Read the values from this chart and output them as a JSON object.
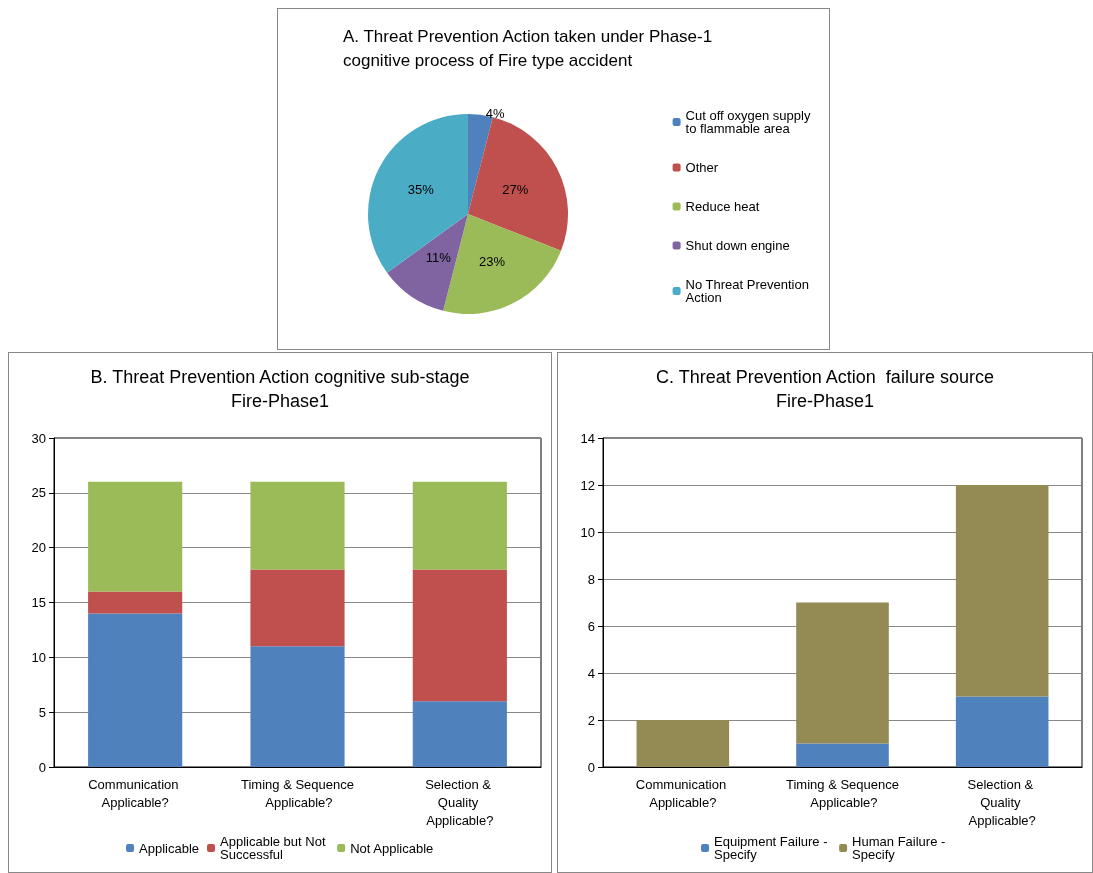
{
  "chart_data": [
    {
      "type": "pie",
      "title": "A. Threat Prevention Action taken under Phase-1 cognitive process of Fire type accident",
      "categories": [
        "Cut off oxygen supply to flammable area",
        "Other",
        "Reduce heat",
        "Shut down engine",
        "No Threat Prevention Action"
      ],
      "values": [
        4,
        27,
        23,
        11,
        35
      ],
      "value_labels": [
        "4%",
        "27%",
        "23%",
        "11%",
        "35%"
      ],
      "colors": [
        "#4f81bd",
        "#c0504d",
        "#9bbb59",
        "#8064a2",
        "#4bacc6"
      ],
      "legend": "right"
    },
    {
      "type": "bar",
      "stacked": true,
      "title": "B. Threat Prevention Action cognitive sub-stage",
      "subtitle": "Fire-Phase1",
      "categories": [
        "Communication Applicable?",
        "Timing & Sequence Applicable?",
        "Selection & Quality Applicable?"
      ],
      "series": [
        {
          "name": "Applicable",
          "color": "#4f81bd",
          "values": [
            14,
            11,
            6
          ]
        },
        {
          "name": "Applicable but Not Successful",
          "color": "#c0504d",
          "values": [
            2,
            7,
            12
          ]
        },
        {
          "name": "Not Applicable",
          "color": "#9bbb59",
          "values": [
            10,
            8,
            8
          ]
        }
      ],
      "ylim": [
        0,
        30
      ],
      "yticks": [
        0,
        5,
        10,
        15,
        20,
        25,
        30
      ],
      "grid": "y",
      "legend": "bottom"
    },
    {
      "type": "bar",
      "stacked": true,
      "title": "C. Threat Prevention Action  failure source",
      "subtitle": "Fire-Phase1",
      "categories": [
        "Communication Applicable?",
        "Timing & Sequence Applicable?",
        "Selection & Quality Applicable?"
      ],
      "series": [
        {
          "name": "Equipment Failure - Specify",
          "color": "#4f81bd",
          "values": [
            0,
            1,
            3
          ]
        },
        {
          "name": "Human Failure - Specify",
          "color": "#948a54",
          "values": [
            2,
            6,
            9
          ]
        }
      ],
      "ylim": [
        0,
        14
      ],
      "yticks": [
        0,
        2,
        4,
        6,
        8,
        10,
        12,
        14
      ],
      "grid": "y",
      "legend": "bottom"
    }
  ]
}
